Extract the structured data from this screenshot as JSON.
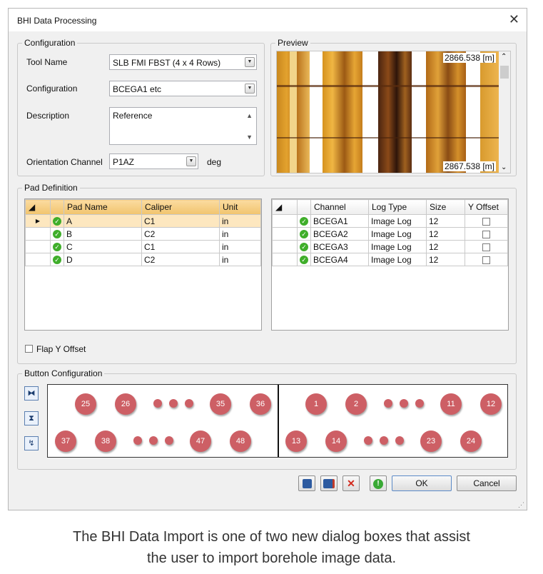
{
  "dialog": {
    "title": "BHI Data Processing",
    "close_icon": "close-icon"
  },
  "configuration": {
    "group_label": "Configuration",
    "tool_name_label": "Tool Name",
    "tool_name_value": "SLB FMI FBST (4 x 4 Rows)",
    "configuration_label": "Configuration",
    "configuration_value": "BCEGA1 etc",
    "description_label": "Description",
    "description_value": "Reference",
    "orientation_label": "Orientation Channel",
    "orientation_value": "P1AZ",
    "orientation_unit": "deg"
  },
  "preview": {
    "group_label": "Preview",
    "top_depth": "2866.538 [m]",
    "bottom_depth": "2867.538 [m]"
  },
  "pad_definition": {
    "group_label": "Pad Definition",
    "pad_columns": [
      "Pad Name",
      "Caliper",
      "Unit"
    ],
    "pad_rows": [
      {
        "name": "A",
        "caliper": "C1",
        "unit": "in"
      },
      {
        "name": "B",
        "caliper": "C2",
        "unit": "in"
      },
      {
        "name": "C",
        "caliper": "C1",
        "unit": "in"
      },
      {
        "name": "D",
        "caliper": "C2",
        "unit": "in"
      }
    ],
    "channel_columns": [
      "Channel",
      "Log Type",
      "Size",
      "Y Offset"
    ],
    "channel_rows": [
      {
        "channel": "BCEGA1",
        "log_type": "Image Log",
        "size": "12",
        "y_offset": false
      },
      {
        "channel": "BCEGA2",
        "log_type": "Image Log",
        "size": "12",
        "y_offset": false
      },
      {
        "channel": "BCEGA3",
        "log_type": "Image Log",
        "size": "12",
        "y_offset": false
      },
      {
        "channel": "BCEGA4",
        "log_type": "Image Log",
        "size": "12",
        "y_offset": false
      }
    ],
    "flap_label": "Flap Y Offset",
    "flap_checked": false
  },
  "button_configuration": {
    "group_label": "Button Configuration",
    "left_row1": [
      "25",
      "26",
      "35",
      "36"
    ],
    "left_row2": [
      "37",
      "38",
      "47",
      "48"
    ],
    "right_row1": [
      "1",
      "2",
      "11",
      "12"
    ],
    "right_row2": [
      "13",
      "14",
      "23",
      "24"
    ],
    "button_color": "#cd5f65"
  },
  "footer": {
    "ok_label": "OK",
    "cancel_label": "Cancel"
  },
  "caption": {
    "line1": "The BHI Data Import is one of two new dialog boxes that assist",
    "line2": "the user to import borehole image data."
  }
}
